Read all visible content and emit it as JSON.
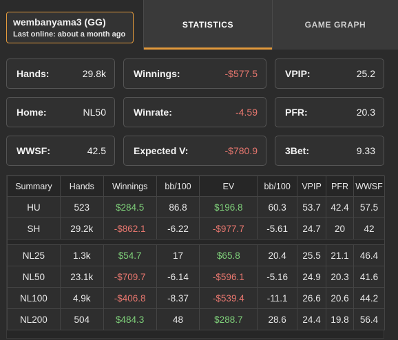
{
  "player": {
    "name": "wembanyama3 (GG)",
    "last_online": "Last online: about a month ago"
  },
  "tabs": [
    {
      "label": "STATISTICS",
      "active": true
    },
    {
      "label": "GAME GRAPH",
      "active": false
    }
  ],
  "colors": {
    "accent": "#e39a3c",
    "negative": "#e8776f",
    "positive": "#7fd07a"
  },
  "stats": [
    {
      "label": "Hands:",
      "value": "29.8k",
      "tone": ""
    },
    {
      "label": "Winnings:",
      "value": "-$577.5",
      "tone": "neg"
    },
    {
      "label": "VPIP:",
      "value": "25.2",
      "tone": ""
    },
    {
      "label": "Home:",
      "value": "NL50",
      "tone": ""
    },
    {
      "label": "Winrate:",
      "value": "-4.59",
      "tone": "neg"
    },
    {
      "label": "PFR:",
      "value": "20.3",
      "tone": ""
    },
    {
      "label": "WWSF:",
      "value": "42.5",
      "tone": ""
    },
    {
      "label": "Expected V:",
      "value": "-$780.9",
      "tone": "neg"
    },
    {
      "label": "3Bet:",
      "value": "9.33",
      "tone": ""
    }
  ],
  "table": {
    "headers": [
      "Summary",
      "Hands",
      "Winnings",
      "bb/100",
      "EV",
      "bb/100",
      "VPIP",
      "PFR",
      "WWSF"
    ],
    "groups": [
      [
        {
          "name": "HU",
          "hands": "523",
          "winnings": "$284.5",
          "bb": "86.8",
          "ev": "$196.8",
          "evbb": "60.3",
          "vpip": "53.7",
          "pfr": "42.4",
          "wwsf": "57.5"
        },
        {
          "name": "SH",
          "hands": "29.2k",
          "winnings": "-$862.1",
          "bb": "-6.22",
          "ev": "-$977.7",
          "evbb": "-5.61",
          "vpip": "24.7",
          "pfr": "20",
          "wwsf": "42"
        }
      ],
      [
        {
          "name": "NL25",
          "hands": "1.3k",
          "winnings": "$54.7",
          "bb": "17",
          "ev": "$65.8",
          "evbb": "20.4",
          "vpip": "25.5",
          "pfr": "21.1",
          "wwsf": "46.4"
        },
        {
          "name": "NL50",
          "hands": "23.1k",
          "winnings": "-$709.7",
          "bb": "-6.14",
          "ev": "-$596.1",
          "evbb": "-5.16",
          "vpip": "24.9",
          "pfr": "20.3",
          "wwsf": "41.6"
        },
        {
          "name": "NL100",
          "hands": "4.9k",
          "winnings": "-$406.8",
          "bb": "-8.37",
          "ev": "-$539.4",
          "evbb": "-11.1",
          "vpip": "26.6",
          "pfr": "20.6",
          "wwsf": "44.2"
        },
        {
          "name": "NL200",
          "hands": "504",
          "winnings": "$484.3",
          "bb": "48",
          "ev": "$288.7",
          "evbb": "28.6",
          "vpip": "24.4",
          "pfr": "19.8",
          "wwsf": "56.4"
        }
      ]
    ]
  }
}
